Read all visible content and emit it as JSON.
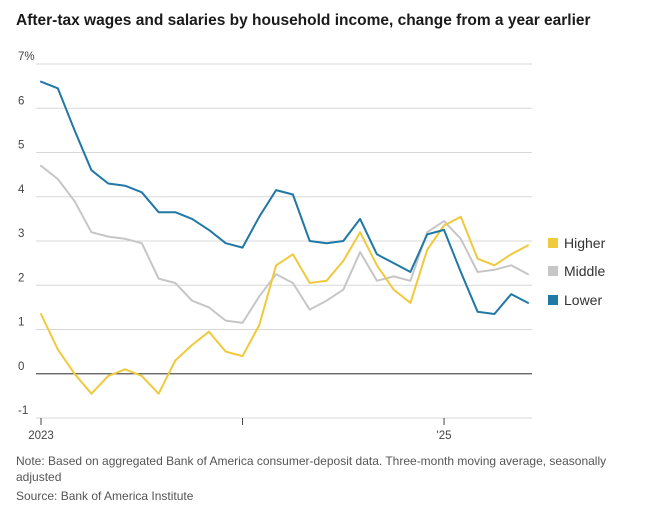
{
  "title": "After-tax wages and salaries by household income, change from a year earlier",
  "note": "Note: Based on aggregated Bank of America consumer-deposit data. Three-month moving average, seasonally adjusted",
  "source": "Source: Bank of America Institute",
  "colors": {
    "Higher": "#f0c93c",
    "Middle": "#c6c6c6",
    "Lower": "#1f78a5",
    "grid": "#d8d8d8",
    "zero": "#555555"
  },
  "chart_data": {
    "type": "line",
    "title": "After-tax wages and salaries by household income, change from a year earlier",
    "xlabel": "",
    "ylabel": "",
    "x": [
      "2023-01",
      "2023-02",
      "2023-03",
      "2023-04",
      "2023-05",
      "2023-06",
      "2023-07",
      "2023-08",
      "2023-09",
      "2023-10",
      "2023-11",
      "2023-12",
      "2024-01",
      "2024-02",
      "2024-03",
      "2024-04",
      "2024-05",
      "2024-06",
      "2024-07",
      "2024-08",
      "2024-09",
      "2024-10",
      "2024-11",
      "2024-12",
      "2025-01",
      "2025-02",
      "2025-03",
      "2025-04",
      "2025-05",
      "2025-06"
    ],
    "x_tick_labels": [
      {
        "x": "2023-01",
        "label": "2023"
      },
      {
        "x": "2024-01",
        "label": ""
      },
      {
        "x": "2025-01",
        "label": "'25"
      }
    ],
    "y_ticks": [
      {
        "value": 7,
        "label": "7%"
      },
      {
        "value": 6,
        "label": "6"
      },
      {
        "value": 5,
        "label": "5"
      },
      {
        "value": 4,
        "label": "4"
      },
      {
        "value": 3,
        "label": "3"
      },
      {
        "value": 2,
        "label": "2"
      },
      {
        "value": 1,
        "label": "1"
      },
      {
        "value": 0,
        "label": "0"
      },
      {
        "value": -1,
        "label": "-1"
      }
    ],
    "ylim": [
      -1,
      7
    ],
    "grid": true,
    "legend_placement": "right",
    "series": [
      {
        "name": "Higher",
        "values": [
          1.35,
          0.55,
          0.0,
          -0.45,
          -0.05,
          0.1,
          -0.05,
          -0.45,
          0.3,
          0.65,
          0.95,
          0.5,
          0.4,
          1.1,
          2.45,
          2.7,
          2.05,
          2.1,
          2.55,
          3.2,
          2.45,
          1.9,
          1.6,
          2.8,
          3.35,
          3.55,
          2.6,
          2.45,
          2.7,
          2.9
        ]
      },
      {
        "name": "Middle",
        "values": [
          4.7,
          4.4,
          3.9,
          3.2,
          3.1,
          3.05,
          2.95,
          2.15,
          2.05,
          1.65,
          1.5,
          1.2,
          1.15,
          1.75,
          2.25,
          2.05,
          1.45,
          1.65,
          1.9,
          2.75,
          2.1,
          2.2,
          2.1,
          3.2,
          3.45,
          3.05,
          2.3,
          2.35,
          2.45,
          2.25
        ]
      },
      {
        "name": "Lower",
        "values": [
          6.6,
          6.45,
          5.5,
          4.6,
          4.3,
          4.25,
          4.1,
          3.65,
          3.65,
          3.5,
          3.25,
          2.95,
          2.85,
          3.55,
          4.15,
          4.05,
          3.0,
          2.95,
          3.0,
          3.5,
          2.7,
          2.5,
          2.3,
          3.15,
          3.25,
          2.3,
          1.4,
          1.35,
          1.8,
          1.6
        ]
      }
    ]
  }
}
